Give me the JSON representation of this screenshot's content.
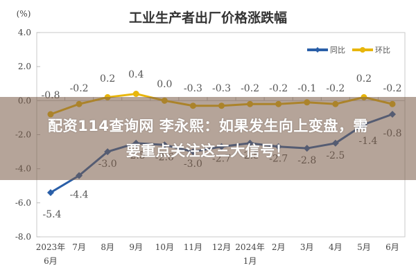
{
  "chart_data": {
    "type": "line",
    "title": "工业生产者出厂价格涨跌幅",
    "ylabel": "(%)",
    "xlabel": "",
    "ylim": [
      -8.0,
      4.0
    ],
    "yticks": [
      "4.0",
      "2.0",
      "0.0",
      "-2.0",
      "-4.0",
      "-6.0",
      "-8.0"
    ],
    "ytick_values": [
      4.0,
      2.0,
      0.0,
      -2.0,
      -4.0,
      -6.0,
      -8.0
    ],
    "categories": [
      "2023年\n6月",
      "7月",
      "8月",
      "9月",
      "10月",
      "11月",
      "12月",
      "2024年\n1月",
      "2月",
      "3月",
      "4月",
      "5月",
      "6月"
    ],
    "category_lines": [
      [
        "2023年",
        "6月"
      ],
      [
        "7月"
      ],
      [
        "8月"
      ],
      [
        "9月"
      ],
      [
        "10月"
      ],
      [
        "11月"
      ],
      [
        "12月"
      ],
      [
        "2024年",
        "1月"
      ],
      [
        "2月"
      ],
      [
        "3月"
      ],
      [
        "4月"
      ],
      [
        "5月"
      ],
      [
        "6月"
      ]
    ],
    "series": [
      {
        "name": "同比",
        "color": "#2a5fa8",
        "marker": "diamond",
        "values": [
          -5.4,
          -4.4,
          -3.0,
          -2.5,
          -2.6,
          -3.0,
          -2.7,
          -2.5,
          -2.7,
          -2.8,
          -2.5,
          -1.4,
          -0.8
        ],
        "labels": [
          "-5.4",
          "-4.4",
          "-3.0",
          "-2.5",
          "-2.6",
          "-3.0",
          "-2.7",
          "-2.5",
          "-2.7",
          "-2.8",
          "-2.5",
          "-1.4",
          "-0.8"
        ]
      },
      {
        "name": "环比",
        "color": "#e8b60c",
        "marker": "circle",
        "values": [
          -0.8,
          -0.2,
          0.2,
          0.4,
          0.0,
          -0.3,
          -0.3,
          -0.2,
          -0.2,
          -0.1,
          -0.2,
          0.2,
          -0.2
        ],
        "labels": [
          "-0.8",
          "-0.2",
          "0.2",
          "0.4",
          "0.0",
          "-0.3",
          "-0.3",
          "-0.2",
          "-0.2",
          "-0.1",
          "-0.2",
          "0.2",
          "-0.2"
        ]
      }
    ],
    "legend": {
      "position": "top-right",
      "entries": [
        "同比",
        "环比"
      ]
    },
    "grid": false
  },
  "overlay": {
    "line1": "配资114查询网 李永熙：如果发生向上变盘，需",
    "line2": "要重点关注这三大信号！"
  }
}
